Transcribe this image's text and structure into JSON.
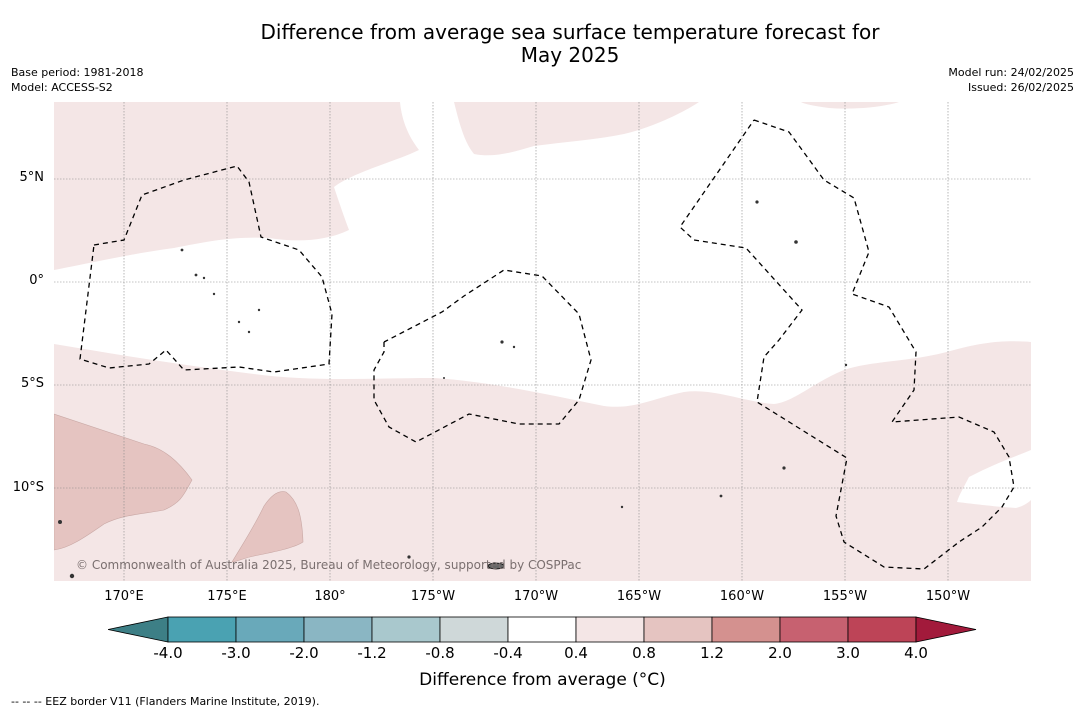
{
  "header": {
    "title_line1": "Difference from average sea surface temperature forecast for",
    "title_line2": "May 2025",
    "base_period": "Base period: 1981-2018",
    "model": "Model: ACCESS-S2",
    "model_run": "Model run: 24/02/2025",
    "issued": "Issued: 26/02/2025"
  },
  "map": {
    "lat_labels": [
      "5°N",
      "0°",
      "5°S",
      "10°S"
    ],
    "lon_labels": [
      "170°E",
      "175°E",
      "180°",
      "175°W",
      "170°W",
      "165°W",
      "160°W",
      "155°W",
      "150°W"
    ],
    "copyright": "© Commonwealth of Australia 2025, Bureau of Meteorology, supported by COSPPac",
    "colors": {
      "anomaly_0_4_to_0_8": "#f4e6e6",
      "anomaly_0_8_to_1_2": "#e5c4c1",
      "eez_border": "#000000",
      "gridline": "#888888"
    }
  },
  "colorbar": {
    "ticks": [
      "-4.0",
      "-3.0",
      "-2.0",
      "-1.2",
      "-0.8",
      "-0.4",
      "0.4",
      "0.8",
      "1.2",
      "2.0",
      "3.0",
      "4.0"
    ],
    "colors": [
      "#3d7f86",
      "#4aa2b2",
      "#69a9ba",
      "#8ab6c3",
      "#a9c8cd",
      "#cfd8d9",
      "#ffffff",
      "#f4e6e6",
      "#e5c4c1",
      "#d4918f",
      "#c76170",
      "#bd4457",
      "#a21a3b"
    ],
    "label": "Difference from average (°C)"
  },
  "footnote": "--  --  -- EEZ border V11 (Flanders Marine Institute, 2019)."
}
